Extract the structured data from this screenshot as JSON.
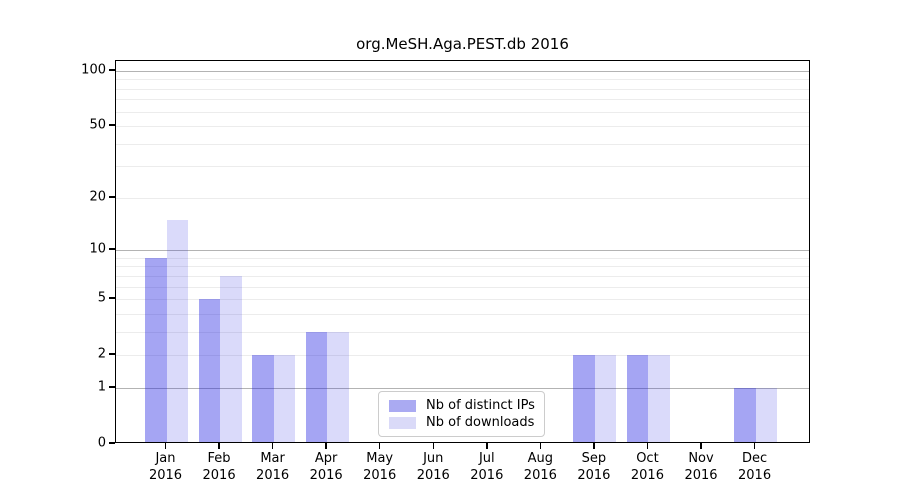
{
  "figure": {
    "title": "org.MeSH.Aga.PEST.db 2016"
  },
  "chart_data": {
    "type": "bar",
    "title": "org.MeSH.Aga.PEST.db 2016",
    "categories": [
      "Jan",
      "Feb",
      "Mar",
      "Apr",
      "May",
      "Jun",
      "Jul",
      "Aug",
      "Sep",
      "Oct",
      "Nov",
      "Dec"
    ],
    "category_year": "2016",
    "series": [
      {
        "name": "Nb of distinct IPs",
        "color": "rgba(30,30,225,0.40)",
        "legend_color": "#aaaaf2",
        "values": [
          9,
          5,
          2,
          3,
          0,
          0,
          0,
          0,
          2,
          2,
          0,
          1
        ]
      },
      {
        "name": "Nb of downloads",
        "color": "rgba(30,30,225,0.165)",
        "legend_color": "#dadaf8",
        "values": [
          15,
          7,
          2,
          3,
          0,
          0,
          0,
          0,
          2,
          2,
          0,
          1
        ]
      }
    ],
    "xlabel": "",
    "ylabel": "",
    "yscale": "log1p",
    "ylim": [
      0,
      113
    ],
    "yticks": [
      0,
      1,
      2,
      5,
      10,
      20,
      50,
      100
    ],
    "grid": {
      "major_values": [
        1,
        10,
        100
      ],
      "minor_values": [
        2,
        3,
        4,
        5,
        6,
        7,
        8,
        9,
        20,
        30,
        40,
        50,
        60,
        70,
        80,
        90
      ],
      "major_color": "#b3b3b3",
      "minor_color": "#ececec"
    },
    "legend": {
      "entries": [
        "Nb of distinct IPs",
        "Nb of downloads"
      ],
      "position": "bottom-center"
    }
  }
}
